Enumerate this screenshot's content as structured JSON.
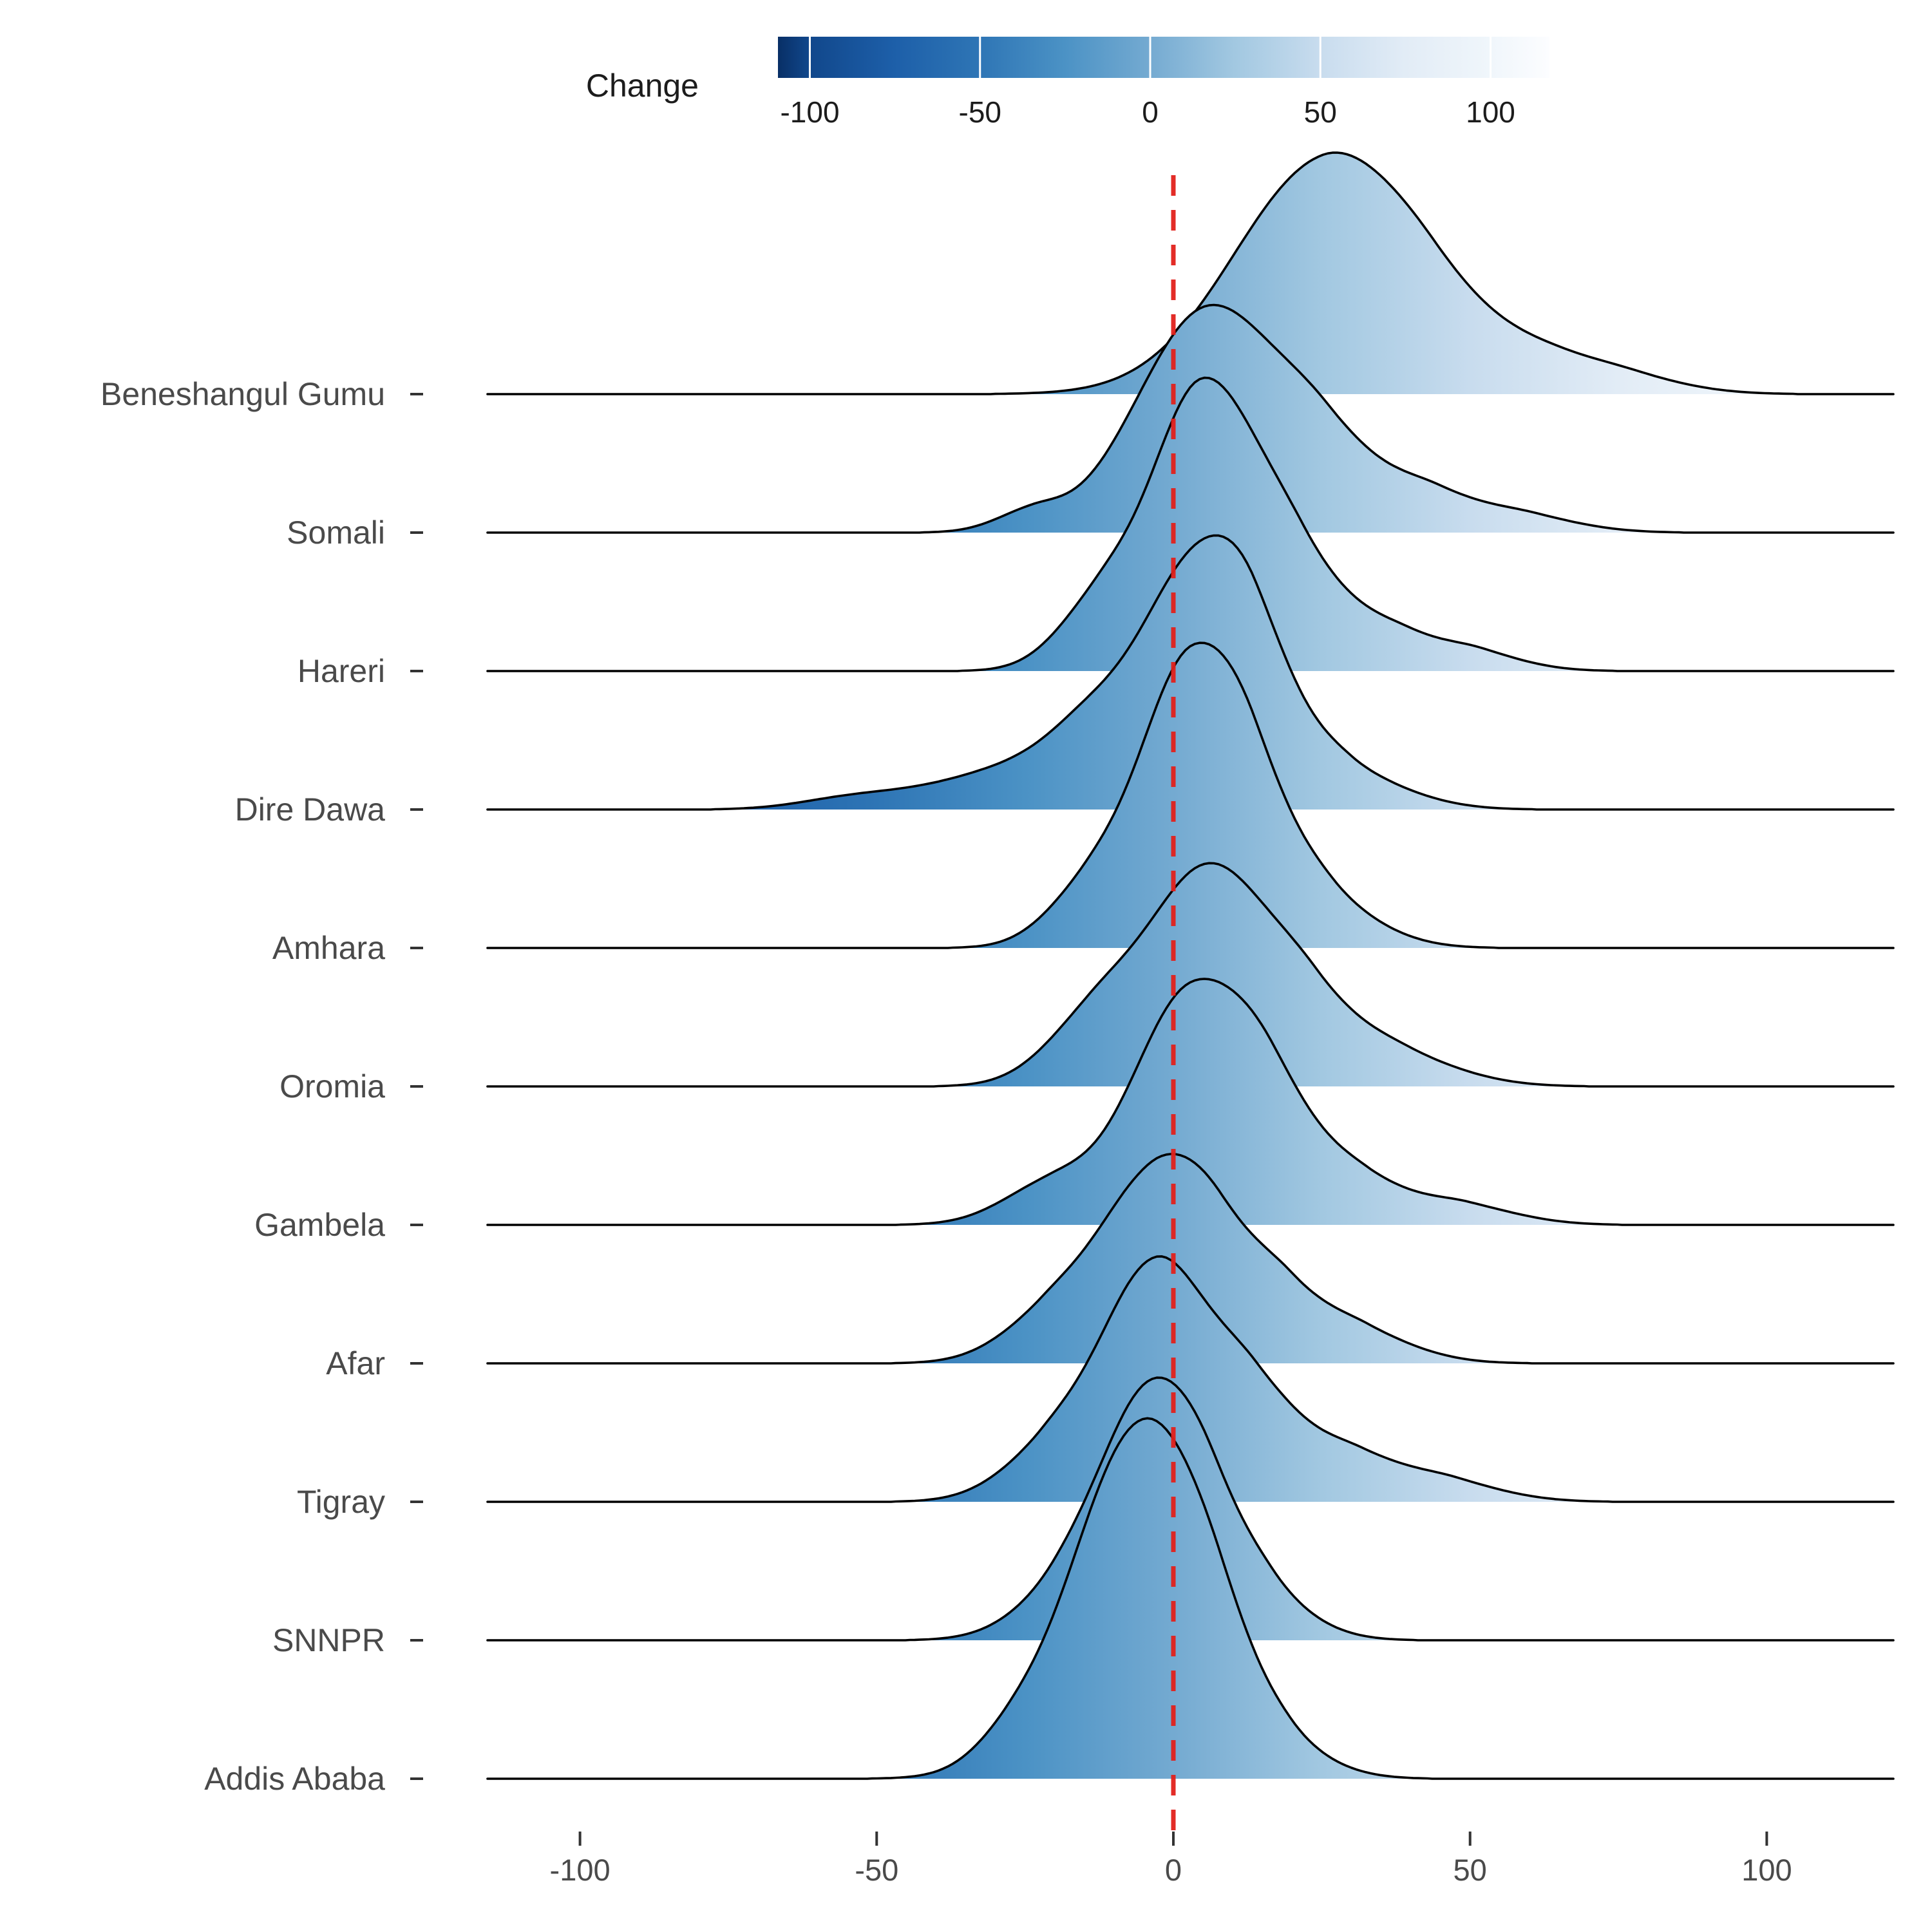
{
  "legend": {
    "title": "Change",
    "tick_labels": [
      "-100",
      "-50",
      "0",
      "50",
      "100"
    ],
    "tick_values": [
      -100,
      -50,
      0,
      50,
      100
    ]
  },
  "x_axis": {
    "tick_labels": [
      "-100",
      "-50",
      "0",
      "50",
      "100"
    ],
    "tick_values": [
      -100,
      -50,
      0,
      50,
      100
    ]
  },
  "colors": {
    "background": "#ffffff",
    "outline": "#000000",
    "reference_line": "#e2211c",
    "axis_text": "#4a4a4a",
    "legend_text": "#1c1c1c",
    "tick_mark": "#333333",
    "gradient_stops": [
      [
        -115,
        "#082f66"
      ],
      [
        -100,
        "#11478b"
      ],
      [
        -75,
        "#1d5fa9"
      ],
      [
        -50,
        "#2e75b5"
      ],
      [
        -25,
        "#4b92c5"
      ],
      [
        0,
        "#74aad1"
      ],
      [
        25,
        "#a2c8e1"
      ],
      [
        50,
        "#c8dcee"
      ],
      [
        75,
        "#e2ecf6"
      ],
      [
        100,
        "#f0f6fb"
      ],
      [
        121,
        "#fcfdff"
      ]
    ]
  },
  "chart_data": {
    "type": "area",
    "subtype": "ridgeline-density-joyplot",
    "title": "",
    "xlabel": "",
    "ylabel": "",
    "xlim": [
      -115,
      121
    ],
    "x_ticks": [
      -100,
      -50,
      0,
      50,
      100
    ],
    "reference_line_x": 0,
    "legend_title": "Change",
    "fill_scale": {
      "limits": [
        -109,
        117
      ],
      "ticks": [
        -100,
        -50,
        0,
        50,
        100
      ],
      "palette": "Blues reversed (dark blue = negative, white = positive)"
    },
    "grid": false,
    "categories": [
      "Beneshangul Gumu",
      "Somali",
      "Hareri",
      "Dire Dawa",
      "Amhara",
      "Oromia",
      "Gambela",
      "Afar",
      "Tigray",
      "SNNPR",
      "Addis Ababa"
    ],
    "series": [
      {
        "name": "Beneshangul Gumu",
        "mode": 25,
        "approx_range": [
          -21,
          90
        ],
        "rel_peak": 1.0,
        "components": [
          [
            25,
            352,
            15,
            13
          ],
          [
            44,
            115,
            10,
            13
          ],
          [
            66,
            38,
            9,
            11
          ],
          [
            78,
            12,
            7,
            10
          ]
        ]
      },
      {
        "name": "Somali",
        "mode": 6,
        "approx_range": [
          -38,
          67
        ],
        "rel_peak": 0.99,
        "components": [
          [
            6,
            348,
            12,
            12
          ],
          [
            26,
            112,
            8,
            11
          ],
          [
            45,
            46,
            7,
            11
          ],
          [
            61,
            14,
            6,
            9
          ],
          [
            -24,
            28,
            6,
            5
          ]
        ]
      },
      {
        "name": "Hareri",
        "mode": 5,
        "approx_range": [
          -28,
          54
        ],
        "rel_peak": 1.28,
        "components": [
          [
            5,
            448,
            9,
            10
          ],
          [
            -13,
            85,
            7,
            6
          ],
          [
            22,
            118,
            7,
            10
          ],
          [
            40,
            42,
            7,
            10
          ],
          [
            52,
            14,
            5,
            8
          ]
        ]
      },
      {
        "name": "Dire Dawa",
        "mode": 4,
        "approx_range": [
          -67,
          47
        ],
        "rel_peak": 1.09,
        "components": [
          [
            4,
            382,
            10,
            10
          ],
          [
            14,
            118,
            6,
            9
          ],
          [
            -15,
            92,
            7,
            7
          ],
          [
            -28,
            55,
            9,
            8
          ],
          [
            -45,
            22,
            10,
            9
          ],
          [
            -57,
            9,
            8,
            8
          ],
          [
            30,
            46,
            6,
            10
          ]
        ]
      },
      {
        "name": "Amhara",
        "mode": 3,
        "approx_range": [
          -30,
          37
        ],
        "rel_peak": 1.28,
        "components": [
          [
            3,
            450,
            9,
            10
          ],
          [
            14,
            100,
            6,
            9
          ],
          [
            27,
            46,
            6,
            9
          ],
          [
            -15,
            70,
            7,
            6
          ]
        ]
      },
      {
        "name": "Oromia",
        "mode": 6,
        "approx_range": [
          -38,
          50
        ],
        "rel_peak": 0.97,
        "components": [
          [
            6,
            342,
            11,
            11
          ],
          [
            -14,
            80,
            8,
            7
          ],
          [
            24,
            92,
            7,
            10
          ],
          [
            40,
            32,
            7,
            10
          ]
        ]
      },
      {
        "name": "Gambela",
        "mode": 3,
        "approx_range": [
          -33,
          62
        ],
        "rel_peak": 1.03,
        "components": [
          [
            3,
            362,
            10,
            11
          ],
          [
            17,
            112,
            7,
            9
          ],
          [
            33,
            56,
            7,
            10
          ],
          [
            50,
            22,
            6,
            9
          ],
          [
            -21,
            58,
            8,
            7
          ]
        ]
      },
      {
        "name": "Afar",
        "mode": -4,
        "approx_range": [
          -33,
          42
        ],
        "rel_peak": 0.79,
        "components": [
          [
            -4,
            278,
            10,
            9
          ],
          [
            8,
            140,
            7,
            9
          ],
          [
            20,
            72,
            6,
            9
          ],
          [
            33,
            32,
            6,
            9
          ],
          [
            -22,
            50,
            8,
            6
          ]
        ]
      },
      {
        "name": "Tigray",
        "mode": -3,
        "approx_range": [
          -34,
          60
        ],
        "rel_peak": 1.06,
        "components": [
          [
            -3,
            372,
            10,
            9
          ],
          [
            14,
            152,
            7,
            9
          ],
          [
            32,
            62,
            7,
            10
          ],
          [
            48,
            20,
            6,
            9
          ],
          [
            -22,
            55,
            8,
            6
          ]
        ]
      },
      {
        "name": "SNNPR",
        "mode": -4,
        "approx_range": [
          -30,
          28
        ],
        "rel_peak": 1.09,
        "components": [
          [
            -4,
            384,
            9,
            9
          ],
          [
            7,
            100,
            6,
            8
          ],
          [
            17,
            36,
            5,
            8
          ],
          [
            -20,
            48,
            8,
            6
          ]
        ]
      },
      {
        "name": "Addis Ababa",
        "mode": -5,
        "approx_range": [
          -41,
          31
        ],
        "rel_peak": 1.57,
        "components": [
          [
            -5,
            552,
            12,
            11
          ],
          [
            8,
            72,
            6,
            8
          ],
          [
            20,
            26,
            5,
            8
          ],
          [
            -28,
            26,
            6,
            5
          ]
        ]
      }
    ]
  }
}
